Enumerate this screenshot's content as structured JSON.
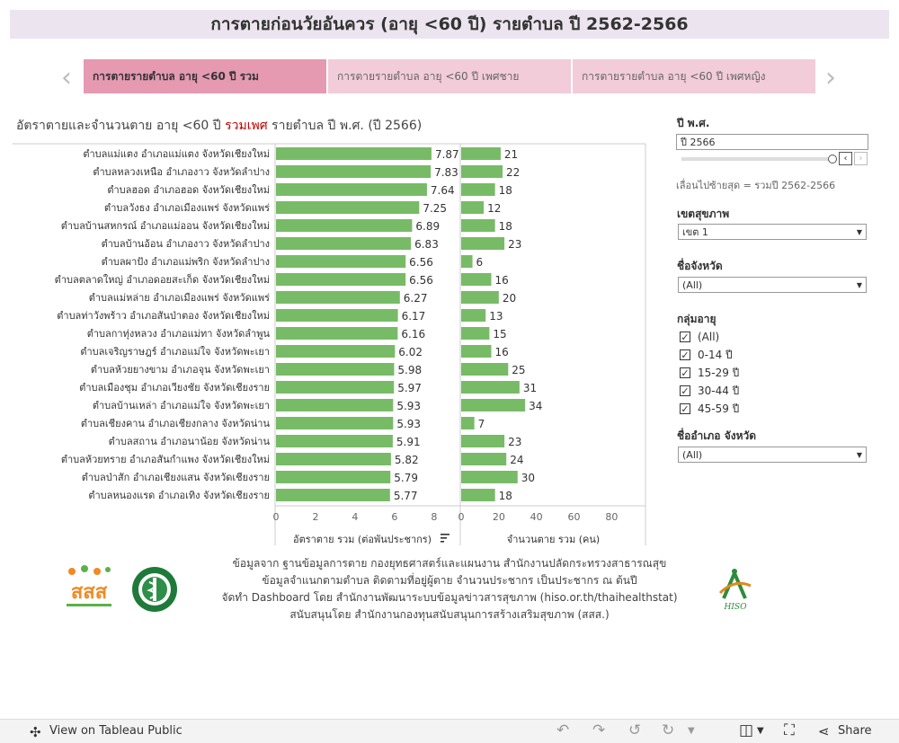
{
  "header": {
    "title": "การตายก่อนวัยอันควร (อายุ <60 ปี) รายตำบล ปี 2562-2566"
  },
  "tabs": [
    {
      "label": "การตายรายตำบล อายุ <60 ปี รวม"
    },
    {
      "label": "การตายรายตำบล อายุ <60 ปี เพศชาย"
    },
    {
      "label": "การตายรายตำบล อายุ <60 ปี เพศหญิง"
    }
  ],
  "nav": {
    "prev": "‹",
    "next": "›"
  },
  "chart_header": {
    "prefix": "อัตราตายและจำนวนตาย อายุ <60 ปี ",
    "accent": "รวมเพศ",
    "suffix": " รายตำบล ปี พ.ศ. (ปี 2566)"
  },
  "chart_data": {
    "type": "bar",
    "categories": [
      "ตำบลแม่แตง อำเภอแม่แตง จังหวัดเชียงใหม่",
      "ตำบลหลวงเหนือ อำเภองาว จังหวัดลำปาง",
      "ตำบลฮอด อำเภอฮอด จังหวัดเชียงใหม่",
      "ตำบลวังธง อำเภอเมืองแพร่ จังหวัดแพร่",
      "ตำบลบ้านสหกรณ์ อำเภอแม่ออน จังหวัดเชียงใหม่",
      "ตำบลบ้านอ้อน อำเภองาว จังหวัดลำปาง",
      "ตำบลผาปัง อำเภอแม่พริก จังหวัดลำปาง",
      "ตำบลตลาดใหญ่ อำเภอดอยสะเก็ด จังหวัดเชียงใหม่",
      "ตำบลแม่หล่าย อำเภอเมืองแพร่ จังหวัดแพร่",
      "ตำบลท่าวังพร้าว อำเภอสันป่าตอง จังหวัดเชียงใหม่",
      "ตำบลกาทุ่งหลวง อำเภอแม่ทา จังหวัดลำพูน",
      "ตำบลเจริญราษฎร์ อำเภอแม่ใจ จังหวัดพะเยา",
      "ตำบลห้วยยางขาม อำเภอจุน จังหวัดพะเยา",
      "ตำบลเมืองชุม อำเภอเวียงชัย จังหวัดเชียงราย",
      "ตำบลบ้านเหล่า อำเภอแม่ใจ จังหวัดพะเยา",
      "ตำบลเชียงคาน อำเภอเชียงกลาง จังหวัดน่าน",
      "ตำบลสถาน อำเภอนาน้อย จังหวัดน่าน",
      "ตำบลห้วยทราย อำเภอสันกำแพง จังหวัดเชียงใหม่",
      "ตำบลป่าสัก อำเภอเชียงแสน จังหวัดเชียงราย",
      "ตำบลหนองแรด อำเภอเทิง จังหวัดเชียงราย"
    ],
    "series": [
      {
        "name": "อัตราตาย รวม (ต่อพันประชากร)",
        "values": [
          7.87,
          7.83,
          7.64,
          7.25,
          6.89,
          6.83,
          6.56,
          6.56,
          6.27,
          6.17,
          6.16,
          6.02,
          5.98,
          5.97,
          5.93,
          5.93,
          5.91,
          5.82,
          5.79,
          5.77
        ],
        "ticks": [
          0,
          2,
          4,
          6,
          8
        ],
        "xlim": [
          0,
          9.1
        ]
      },
      {
        "name": "จำนวนตาย รวม (คน)",
        "values": [
          21,
          22,
          18,
          12,
          18,
          23,
          6,
          16,
          20,
          13,
          15,
          16,
          25,
          31,
          34,
          7,
          23,
          24,
          30,
          18
        ],
        "ticks": [
          0,
          20,
          40,
          60,
          80
        ],
        "xlim": [
          0,
          98
        ]
      }
    ],
    "color": "#77bb66"
  },
  "filters": {
    "year": {
      "label": "ปี  พ.ศ.",
      "value": "ปี 2566",
      "hint": "เลื่อนไปซ้ายสุด = รวมปี 2562-2566"
    },
    "region": {
      "label": "เขตสุขภาพ",
      "value": "เขต 1"
    },
    "province": {
      "label": "ชื่อจังหวัด",
      "value": "(All)"
    },
    "age_group": {
      "label": "กลุ่มอายุ",
      "options": [
        "(All)",
        "0-14 ปี",
        "15-29 ปี",
        "30-44 ปี",
        "45-59 ปี"
      ]
    },
    "district": {
      "label": "ชื่ออำเภอ  จังหวัด",
      "value": "(All)"
    }
  },
  "footer": {
    "lines": [
      "ข้อมูลจาก ฐานข้อมูลการตาย กองยุทธศาสตร์และแผนงาน สำนักงานปลัดกระทรวงสาธารณสุข",
      "ข้อมูลจำแนกตามตำบล ติดตามที่อยู่ผู้ตาย จำนวนประชากร เป็นประชากร ณ ต้นปี",
      "จัดทำ Dashboard โดย สำนักงานพัฒนาระบบข้อมูลข่าวสารสุขภาพ (hiso.or.th/thaihealthstat)",
      "สนับสนุนโดย สำนักงานกองทุนสนับสนุนการสร้างเสริมสุขภาพ (สสส.)"
    ],
    "logo_sss": "สสส",
    "logo_hiso": "HISO"
  },
  "toolbar": {
    "view_label": "View on Tableau Public",
    "share_label": "Share"
  }
}
